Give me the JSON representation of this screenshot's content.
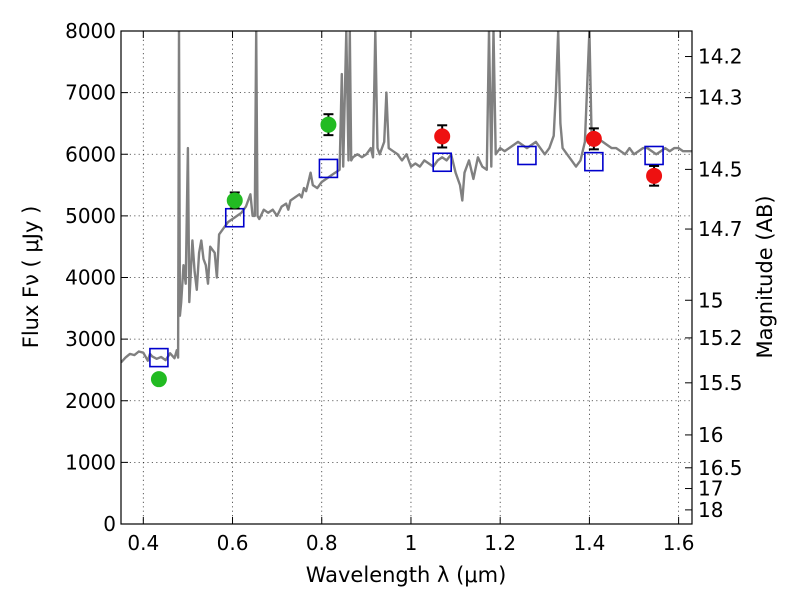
{
  "chart_data": {
    "type": "scatter",
    "xlabel": "Wavelength  λ (μm)",
    "ylabel": "Flux  Fν  ( μJy )",
    "y2label": "Magnitude (AB)",
    "xlim": [
      0.35,
      1.63
    ],
    "ylim": [
      0,
      8000
    ],
    "grid": true,
    "x_ticks": [
      0.4,
      0.6,
      0.8,
      1,
      1.2,
      1.4,
      1.6
    ],
    "x_tick_labels": [
      "0.4",
      "0.6",
      "0.8",
      "1",
      "1.2",
      "1.4",
      "1.6"
    ],
    "y_ticks": [
      0,
      1000,
      2000,
      3000,
      4000,
      5000,
      6000,
      7000,
      8000
    ],
    "y_tick_labels": [
      "0",
      "1000",
      "2000",
      "3000",
      "4000",
      "5000",
      "6000",
      "7000",
      "8000"
    ],
    "y2_ticks": [
      {
        "label": "14.2",
        "mag": 14.2
      },
      {
        "label": "14.3",
        "mag": 14.3
      },
      {
        "label": "14.5",
        "mag": 14.5
      },
      {
        "label": "14.7",
        "mag": 14.7
      },
      {
        "label": "15",
        "mag": 15.0
      },
      {
        "label": "15.2",
        "mag": 15.2
      },
      {
        "label": "15.5",
        "mag": 15.5
      },
      {
        "label": "16",
        "mag": 16.0
      },
      {
        "label": "16.5",
        "mag": 16.5
      },
      {
        "label": "17",
        "mag": 17.0
      },
      {
        "label": "18",
        "mag": 18.0
      }
    ],
    "series": [
      {
        "name": "spectrum",
        "kind": "line",
        "color": "#808080",
        "points": [
          [
            0.35,
            2620
          ],
          [
            0.36,
            2700
          ],
          [
            0.37,
            2760
          ],
          [
            0.38,
            2740
          ],
          [
            0.39,
            2800
          ],
          [
            0.4,
            2780
          ],
          [
            0.41,
            2650
          ],
          [
            0.415,
            2760
          ],
          [
            0.42,
            2720
          ],
          [
            0.43,
            2680
          ],
          [
            0.44,
            2710
          ],
          [
            0.45,
            2660
          ],
          [
            0.46,
            2770
          ],
          [
            0.47,
            2690
          ],
          [
            0.475,
            2820
          ],
          [
            0.478,
            2700
          ],
          [
            0.48,
            8000
          ],
          [
            0.482,
            3380
          ],
          [
            0.485,
            3600
          ],
          [
            0.49,
            4200
          ],
          [
            0.495,
            3900
          ],
          [
            0.5,
            6100
          ],
          [
            0.503,
            3600
          ],
          [
            0.51,
            4600
          ],
          [
            0.515,
            4100
          ],
          [
            0.52,
            3800
          ],
          [
            0.525,
            4400
          ],
          [
            0.53,
            4600
          ],
          [
            0.535,
            4300
          ],
          [
            0.54,
            4200
          ],
          [
            0.545,
            3900
          ],
          [
            0.55,
            4500
          ],
          [
            0.56,
            4400
          ],
          [
            0.565,
            4000
          ],
          [
            0.57,
            4700
          ],
          [
            0.58,
            4800
          ],
          [
            0.59,
            4900
          ],
          [
            0.6,
            4950
          ],
          [
            0.61,
            5000
          ],
          [
            0.62,
            5050
          ],
          [
            0.63,
            5150
          ],
          [
            0.64,
            5350
          ],
          [
            0.645,
            5000
          ],
          [
            0.65,
            5000
          ],
          [
            0.653,
            8000
          ],
          [
            0.656,
            5000
          ],
          [
            0.66,
            4950
          ],
          [
            0.67,
            5100
          ],
          [
            0.68,
            5050
          ],
          [
            0.69,
            5100
          ],
          [
            0.7,
            5000
          ],
          [
            0.71,
            5150
          ],
          [
            0.72,
            5200
          ],
          [
            0.725,
            5100
          ],
          [
            0.73,
            5250
          ],
          [
            0.74,
            5300
          ],
          [
            0.75,
            5350
          ],
          [
            0.755,
            5300
          ],
          [
            0.76,
            5450
          ],
          [
            0.765,
            5400
          ],
          [
            0.77,
            5550
          ],
          [
            0.775,
            5700
          ],
          [
            0.78,
            5500
          ],
          [
            0.79,
            5450
          ],
          [
            0.8,
            5550
          ],
          [
            0.81,
            5600
          ],
          [
            0.82,
            5650
          ],
          [
            0.83,
            5700
          ],
          [
            0.84,
            5750
          ],
          [
            0.845,
            7300
          ],
          [
            0.848,
            5800
          ],
          [
            0.855,
            8000
          ],
          [
            0.86,
            5900
          ],
          [
            0.863,
            8000
          ],
          [
            0.866,
            5900
          ],
          [
            0.87,
            5950
          ],
          [
            0.88,
            6000
          ],
          [
            0.89,
            5950
          ],
          [
            0.9,
            6000
          ],
          [
            0.91,
            6100
          ],
          [
            0.915,
            5950
          ],
          [
            0.92,
            8000
          ],
          [
            0.925,
            6100
          ],
          [
            0.93,
            6000
          ],
          [
            0.94,
            6200
          ],
          [
            0.945,
            7000
          ],
          [
            0.95,
            6100
          ],
          [
            0.96,
            6050
          ],
          [
            0.97,
            6000
          ],
          [
            0.98,
            5900
          ],
          [
            0.99,
            6000
          ],
          [
            1.0,
            5800
          ],
          [
            1.01,
            5850
          ],
          [
            1.02,
            5800
          ],
          [
            1.03,
            5900
          ],
          [
            1.04,
            5850
          ],
          [
            1.05,
            5800
          ],
          [
            1.06,
            5900
          ],
          [
            1.07,
            5950
          ],
          [
            1.08,
            5900
          ],
          [
            1.09,
            6000
          ],
          [
            1.1,
            5700
          ],
          [
            1.11,
            5500
          ],
          [
            1.115,
            5250
          ],
          [
            1.12,
            5700
          ],
          [
            1.13,
            5900
          ],
          [
            1.14,
            5600
          ],
          [
            1.15,
            5950
          ],
          [
            1.16,
            5800
          ],
          [
            1.17,
            5750
          ],
          [
            1.175,
            8000
          ],
          [
            1.18,
            5800
          ],
          [
            1.185,
            8000
          ],
          [
            1.19,
            6000
          ],
          [
            1.2,
            6100
          ],
          [
            1.21,
            6050
          ],
          [
            1.22,
            6100
          ],
          [
            1.23,
            6150
          ],
          [
            1.24,
            6200
          ],
          [
            1.25,
            6150
          ],
          [
            1.26,
            6100
          ],
          [
            1.27,
            6150
          ],
          [
            1.28,
            6200
          ],
          [
            1.29,
            6100
          ],
          [
            1.3,
            6000
          ],
          [
            1.31,
            6100
          ],
          [
            1.32,
            6300
          ],
          [
            1.325,
            7000
          ],
          [
            1.33,
            8000
          ],
          [
            1.335,
            6500
          ],
          [
            1.34,
            6100
          ],
          [
            1.35,
            6000
          ],
          [
            1.36,
            5900
          ],
          [
            1.37,
            5800
          ],
          [
            1.38,
            5900
          ],
          [
            1.39,
            6200
          ],
          [
            1.4,
            8000
          ],
          [
            1.405,
            6300
          ],
          [
            1.41,
            6200
          ],
          [
            1.42,
            6250
          ],
          [
            1.43,
            6200
          ],
          [
            1.44,
            6150
          ],
          [
            1.45,
            6100
          ],
          [
            1.46,
            6100
          ],
          [
            1.47,
            6050
          ],
          [
            1.48,
            6000
          ],
          [
            1.49,
            6100
          ],
          [
            1.5,
            6000
          ],
          [
            1.51,
            6050
          ],
          [
            1.52,
            6100
          ],
          [
            1.53,
            6100
          ],
          [
            1.54,
            6050
          ],
          [
            1.55,
            6000
          ],
          [
            1.56,
            6050
          ],
          [
            1.57,
            6100
          ],
          [
            1.58,
            6050
          ],
          [
            1.59,
            6100
          ],
          [
            1.6,
            6100
          ],
          [
            1.61,
            6050
          ],
          [
            1.62,
            6050
          ],
          [
            1.63,
            6050
          ]
        ]
      },
      {
        "name": "model-squares",
        "kind": "square",
        "color": "#0000cc",
        "points": [
          [
            0.435,
            2700
          ],
          [
            0.605,
            4970
          ],
          [
            0.815,
            5770
          ],
          [
            1.07,
            5870
          ],
          [
            1.26,
            5980
          ],
          [
            1.41,
            5880
          ],
          [
            1.545,
            5980
          ]
        ]
      },
      {
        "name": "green-points",
        "kind": "errorpoint",
        "color": "#22bb22",
        "points": [
          {
            "x": 0.435,
            "y": 2350,
            "err": 80
          },
          {
            "x": 0.605,
            "y": 5250,
            "err": 130
          },
          {
            "x": 0.815,
            "y": 6480,
            "err": 170
          }
        ]
      },
      {
        "name": "red-points",
        "kind": "errorpoint",
        "color": "#ee1111",
        "points": [
          {
            "x": 1.07,
            "y": 6290,
            "err": 180
          },
          {
            "x": 1.41,
            "y": 6250,
            "err": 170
          },
          {
            "x": 1.545,
            "y": 5650,
            "err": 160
          }
        ]
      }
    ]
  }
}
